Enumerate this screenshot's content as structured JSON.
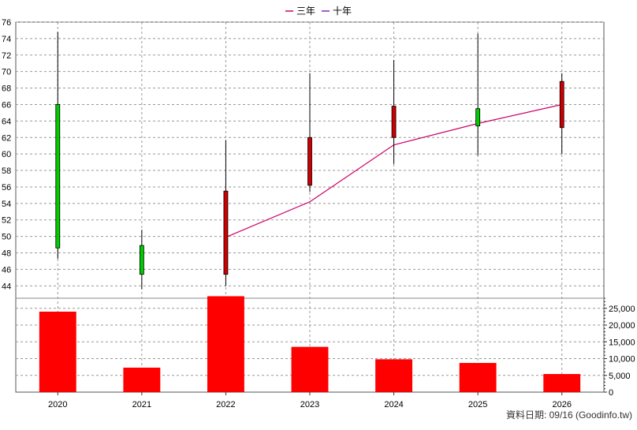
{
  "chart_data": {
    "type": "candlestick+bar",
    "legend": [
      {
        "name": "三年",
        "color": "#cc0066"
      },
      {
        "name": "十年",
        "color": "#7a2fb0"
      }
    ],
    "categories": [
      "2020",
      "2021",
      "2022",
      "2023",
      "2024",
      "2025",
      "2026"
    ],
    "price_axis": {
      "ylim": [
        42.5,
        76
      ],
      "ticks": [
        44,
        46,
        48,
        50,
        52,
        54,
        56,
        58,
        60,
        62,
        64,
        66,
        68,
        70,
        72,
        74,
        76
      ]
    },
    "volume_axis": {
      "ylim": [
        0,
        28000
      ],
      "ticks": [
        0,
        5000,
        10000,
        15000,
        20000,
        25000
      ],
      "tick_labels": [
        "0",
        "5,000",
        "10,000",
        "15,000",
        "20,000",
        "25,000"
      ]
    },
    "candles": [
      {
        "year": "2020",
        "open": 48.6,
        "high": 74.8,
        "low": 47.3,
        "close": 66.0
      },
      {
        "year": "2021",
        "open": 45.4,
        "high": 50.8,
        "low": 43.6,
        "close": 48.9
      },
      {
        "year": "2022",
        "open": 55.5,
        "high": 61.7,
        "low": 44.0,
        "close": 45.4
      },
      {
        "year": "2023",
        "open": 62.0,
        "high": 69.8,
        "low": 55.4,
        "close": 56.2
      },
      {
        "year": "2024",
        "open": 65.8,
        "high": 71.4,
        "low": 58.8,
        "close": 62.0
      },
      {
        "year": "2025",
        "open": 63.4,
        "high": 74.6,
        "low": 59.8,
        "close": 65.5
      },
      {
        "year": "2026",
        "open": 68.8,
        "high": 69.8,
        "low": 60.0,
        "close": 63.2
      }
    ],
    "candle_colors": {
      "up": "#00cc00",
      "down": "#cc0000"
    },
    "series_3yr": {
      "name": "三年",
      "points": [
        {
          "year": "2022",
          "value": 49.9
        },
        {
          "year": "2023",
          "value": 54.2
        },
        {
          "year": "2024",
          "value": 61.1
        },
        {
          "year": "2025",
          "value": 63.7
        },
        {
          "year": "2026",
          "value": 66.0
        }
      ]
    },
    "volume": {
      "values": [
        24000,
        7300,
        28600,
        13500,
        9800,
        8700,
        5400
      ],
      "color": "#ff0000"
    },
    "grid": true
  },
  "footer": {
    "text": "資料日期: 09/16  (Goodinfo.tw)"
  }
}
